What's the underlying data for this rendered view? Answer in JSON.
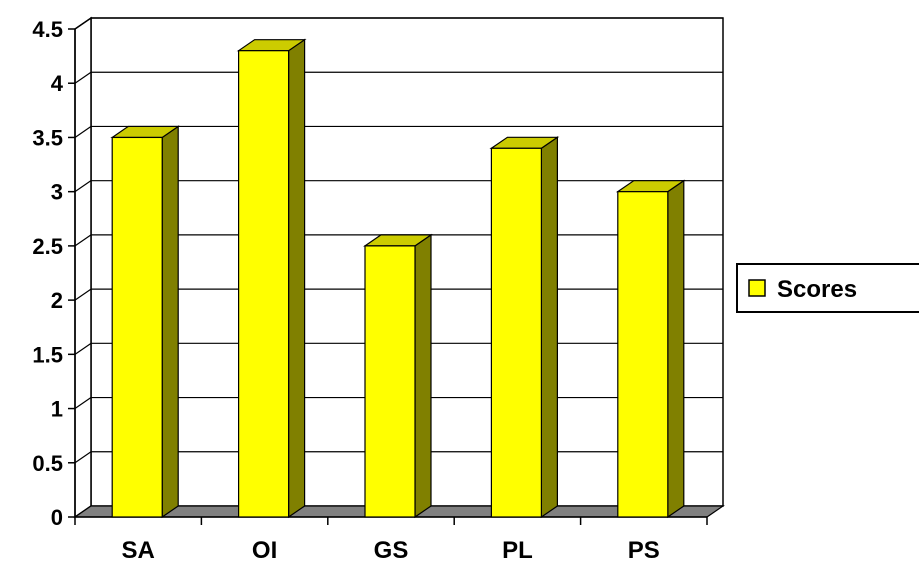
{
  "chart_data": {
    "type": "bar",
    "style": "3d-column",
    "categories": [
      "SA",
      "OI",
      "GS",
      "PL",
      "PS"
    ],
    "series": [
      {
        "name": "Scores",
        "values": [
          3.5,
          4.3,
          2.5,
          3.4,
          3.0
        ]
      }
    ],
    "ylim": [
      0,
      4.5
    ],
    "yticks": [
      "0",
      "0.5",
      "1",
      "1.5",
      "2",
      "2.5",
      "3",
      "3.5",
      "4",
      "4.5"
    ],
    "grid": true,
    "legend": "right",
    "colors": {
      "bar_front": "#FFFF00",
      "bar_side": "#808000",
      "bar_top": "#CCCC00",
      "floor": "#808080",
      "grid": "#000000"
    }
  }
}
